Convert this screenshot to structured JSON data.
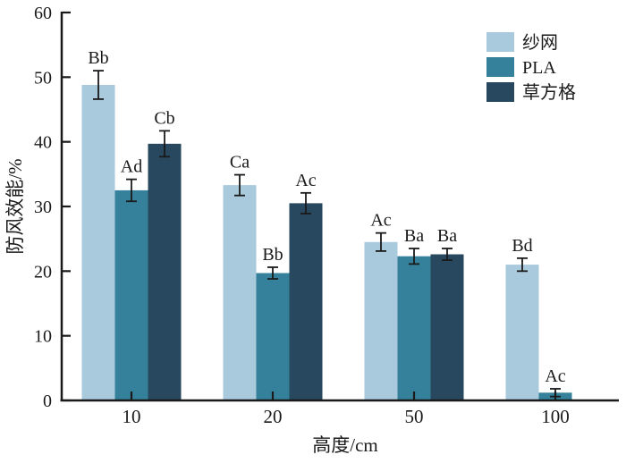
{
  "chart_data": {
    "type": "bar",
    "title": "",
    "xlabel": "高度/cm",
    "ylabel": "防风效能/%",
    "ylim": [
      0,
      60
    ],
    "yticks": [
      0,
      10,
      20,
      30,
      40,
      50,
      60
    ],
    "categories": [
      "10",
      "20",
      "50",
      "100"
    ],
    "grid": false,
    "legend_position": "top-right",
    "axis_color": "#1a1a1a",
    "error_bar_color": "#1a1a1a",
    "series": [
      {
        "name": "纱网",
        "color": "#A9C9DC",
        "values": [
          48.8,
          33.3,
          24.5,
          21.0
        ],
        "errors": [
          2.2,
          1.6,
          1.4,
          1.0
        ],
        "labels": [
          "Bb",
          "Ca",
          "Ac",
          "Bd"
        ]
      },
      {
        "name": "PLA",
        "color": "#35809A",
        "values": [
          32.5,
          19.7,
          22.3,
          1.2
        ],
        "errors": [
          1.7,
          0.9,
          1.2,
          0.6
        ],
        "labels": [
          "Ad",
          "Bb",
          "Ba",
          "Ac"
        ]
      },
      {
        "name": "草方格",
        "color": "#27485E",
        "values": [
          39.7,
          30.5,
          22.6,
          null
        ],
        "errors": [
          2.0,
          1.6,
          0.9,
          null
        ],
        "labels": [
          "Cb",
          "Ac",
          "Ba",
          null
        ]
      }
    ]
  }
}
